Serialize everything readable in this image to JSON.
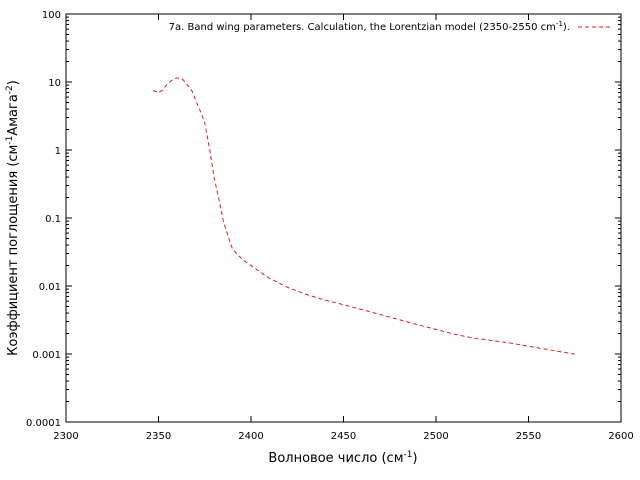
{
  "chart_data": {
    "type": "line",
    "title": "",
    "xlabel": "Волновое число (см",
    "xlabel_sup": "-1",
    "xlabel_end": ")",
    "ylabel": "Коэффициент поглощения (см",
    "ylabel_sup1": "-1",
    "ylabel_mid": "Амага",
    "ylabel_sup2": "-2",
    "ylabel_end": ")",
    "xlim": [
      2300,
      2600
    ],
    "ylim": [
      0.0001,
      100
    ],
    "yscale": "log",
    "grid": false,
    "legend_position": "top-right",
    "x_ticks": [
      2300,
      2350,
      2400,
      2450,
      2500,
      2550,
      2600
    ],
    "x_tick_labels": [
      "2300",
      "2350",
      "2400",
      "2450",
      "2500",
      "2550",
      "2600"
    ],
    "y_ticks": [
      0.0001,
      0.001,
      0.01,
      0.1,
      1,
      10,
      100
    ],
    "y_tick_labels": [
      "0.0001",
      "0.001",
      "0.01",
      "0.1",
      "1",
      "10",
      "100"
    ],
    "series": [
      {
        "name": "7a. Band wing parameters. Calculation, the Lorentzian model (2350-2550 cm",
        "name_sup": "-1",
        "name_end": ").",
        "color": "#e41a1c",
        "style": "dashed",
        "x": [
          2347,
          2350,
          2352,
          2355,
          2358,
          2360,
          2363,
          2365,
          2368,
          2370,
          2373,
          2375,
          2378,
          2380,
          2383,
          2385,
          2388,
          2390,
          2395,
          2400,
          2405,
          2410,
          2420,
          2430,
          2440,
          2450,
          2460,
          2470,
          2480,
          2490,
          2500,
          2510,
          2520,
          2530,
          2540,
          2550,
          2560,
          2570,
          2575
        ],
        "y": [
          7.5,
          7.0,
          7.5,
          9.5,
          11,
          11.5,
          11,
          9.5,
          7.5,
          5.5,
          3.5,
          2.5,
          0.9,
          0.4,
          0.17,
          0.09,
          0.05,
          0.035,
          0.025,
          0.02,
          0.016,
          0.013,
          0.0095,
          0.0075,
          0.0062,
          0.0053,
          0.0045,
          0.0038,
          0.0032,
          0.0027,
          0.0023,
          0.00195,
          0.00172,
          0.00158,
          0.00145,
          0.0013,
          0.00117,
          0.00105,
          0.001
        ]
      }
    ]
  }
}
